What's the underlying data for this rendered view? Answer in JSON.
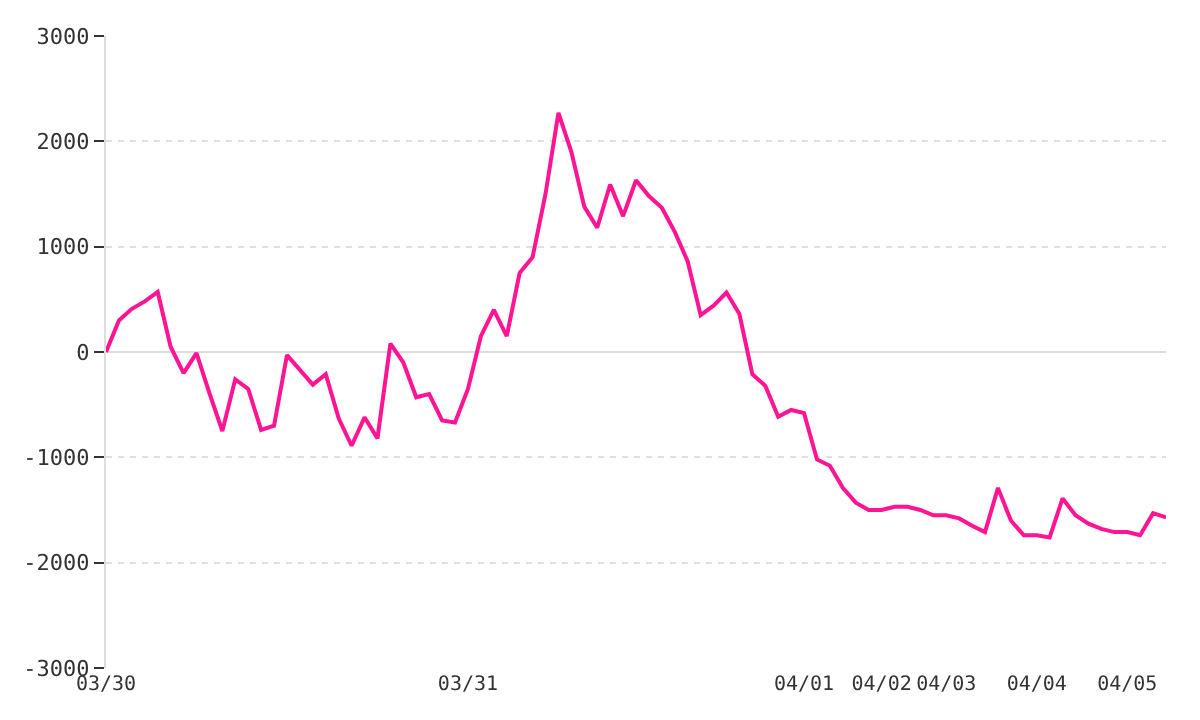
{
  "chart_data": {
    "type": "line",
    "color": "#ff1493",
    "categories": [
      "03/30",
      null,
      null,
      null,
      null,
      null,
      null,
      null,
      null,
      null,
      null,
      null,
      null,
      null,
      null,
      null,
      null,
      null,
      null,
      null,
      null,
      null,
      null,
      null,
      null,
      null,
      null,
      null,
      "03/31",
      null,
      null,
      null,
      null,
      null,
      null,
      null,
      null,
      null,
      null,
      null,
      null,
      null,
      null,
      null,
      null,
      null,
      null,
      null,
      null,
      null,
      null,
      null,
      null,
      null,
      "04/01",
      null,
      null,
      null,
      null,
      null,
      "04/02",
      null,
      null,
      null,
      null,
      "04/03",
      null,
      null,
      null,
      null,
      null,
      null,
      "04/04",
      null,
      null,
      null,
      null,
      null,
      null,
      "04/05",
      null,
      null,
      null
    ],
    "values": [
      0,
      300,
      410,
      480,
      570,
      50,
      -200,
      -10,
      -390,
      -750,
      -260,
      -350,
      -740,
      -700,
      -30,
      -170,
      -310,
      -210,
      -630,
      -890,
      -620,
      -820,
      80,
      -100,
      -430,
      -400,
      -650,
      -670,
      -350,
      150,
      400,
      150,
      750,
      900,
      1500,
      2270,
      1900,
      1380,
      1180,
      1590,
      1290,
      1630,
      1480,
      1370,
      1140,
      860,
      350,
      440,
      565,
      360,
      -210,
      -320,
      -615,
      -550,
      -580,
      -1020,
      -1080,
      -1290,
      -1430,
      -1500,
      -1500,
      -1470,
      -1470,
      -1500,
      -1550,
      -1550,
      -1580,
      -1650,
      -1710,
      -1290,
      -1600,
      -1740,
      -1740,
      -1760,
      -1390,
      -1550,
      -1630,
      -1680,
      -1710,
      -1710,
      -1740,
      -1530,
      -1570
    ],
    "ylim": [
      -3000,
      3000
    ],
    "yticks": [
      -3000,
      -2000,
      -1000,
      0,
      1000,
      2000,
      3000
    ],
    "grid": "y",
    "legend": false,
    "marker": "none",
    "line_style": "solid"
  }
}
